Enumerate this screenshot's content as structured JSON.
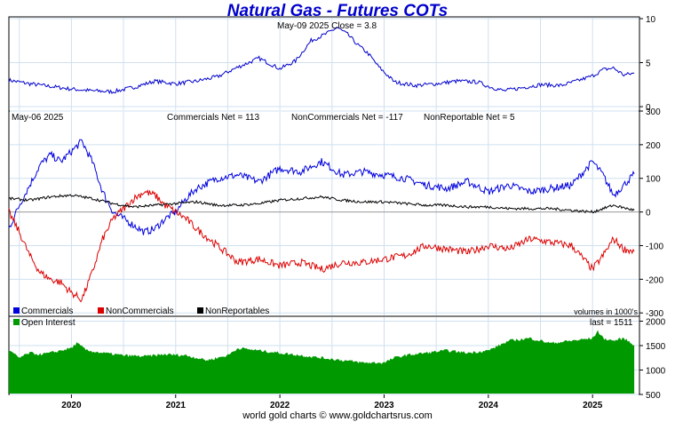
{
  "header": {
    "title": "Natural Gas - Futures COTs",
    "price_info": "May-09  2025    Close = 3.8"
  },
  "cot_info": {
    "date": "May-06  2025",
    "commercials_net": "Commercials Net = 113",
    "noncommercials_net": "NonCommercials Net = -117",
    "nonreportable_net": "NonReportable Net = 5",
    "volumes_note": "volumes in 1000's"
  },
  "oi_info": {
    "legend": "Open Interest",
    "last": "last = 1511"
  },
  "footer": "world gold charts © www.goldchartsrus.com",
  "colors": {
    "price": "#0000cc",
    "commercials": "#0000dd",
    "noncommercials": "#dd0000",
    "nonreportables": "#000000",
    "open_interest": "#009900",
    "grid": "#cfe0f0"
  },
  "chart_data": [
    {
      "type": "line",
      "name": "price",
      "x_ticks": [
        "2020",
        "2021",
        "2022",
        "2023",
        "2024",
        "2025"
      ],
      "yticks": [
        0,
        5,
        10
      ],
      "ylim": [
        -0.5,
        10.2
      ],
      "x_range": [
        2019.4,
        2025.45
      ],
      "x": [
        2019.4,
        2019.6,
        2019.8,
        2020.0,
        2020.2,
        2020.4,
        2020.6,
        2020.8,
        2021.0,
        2021.2,
        2021.4,
        2021.6,
        2021.8,
        2022.0,
        2022.15,
        2022.3,
        2022.45,
        2022.55,
        2022.65,
        2022.75,
        2022.85,
        2022.95,
        2023.1,
        2023.3,
        2023.5,
        2023.7,
        2023.9,
        2024.0,
        2024.15,
        2024.3,
        2024.5,
        2024.7,
        2024.9,
        2025.0,
        2025.1,
        2025.2,
        2025.3,
        2025.4
      ],
      "y": [
        3.0,
        2.6,
        2.3,
        2.0,
        1.8,
        1.7,
        2.2,
        2.9,
        2.6,
        2.9,
        3.4,
        4.5,
        5.5,
        4.3,
        5.2,
        7.5,
        8.3,
        9.0,
        8.2,
        7.0,
        6.0,
        4.5,
        2.8,
        2.4,
        2.6,
        2.9,
        2.8,
        2.3,
        1.8,
        2.1,
        2.5,
        2.4,
        3.1,
        3.5,
        4.2,
        4.4,
        3.6,
        3.8
      ]
    },
    {
      "type": "line",
      "name": "cot",
      "yticks": [
        -300,
        -200,
        -100,
        0,
        100,
        200,
        300
      ],
      "ylim": [
        -310,
        300
      ],
      "x_range": [
        2019.4,
        2025.45
      ],
      "series": [
        {
          "name": "Commercials",
          "x": [
            2019.4,
            2019.5,
            2019.6,
            2019.7,
            2019.8,
            2019.9,
            2020.0,
            2020.1,
            2020.2,
            2020.3,
            2020.4,
            2020.5,
            2020.6,
            2020.7,
            2020.8,
            2020.9,
            2021.0,
            2021.1,
            2021.2,
            2021.4,
            2021.6,
            2021.8,
            2022.0,
            2022.2,
            2022.4,
            2022.6,
            2022.8,
            2023.0,
            2023.2,
            2023.4,
            2023.6,
            2023.8,
            2024.0,
            2024.2,
            2024.4,
            2024.6,
            2024.8,
            2025.0,
            2025.1,
            2025.2,
            2025.3,
            2025.4
          ],
          "y": [
            -50,
            20,
            80,
            140,
            170,
            150,
            180,
            210,
            150,
            60,
            0,
            -20,
            -40,
            -60,
            -50,
            -20,
            0,
            40,
            70,
            100,
            110,
            90,
            130,
            120,
            150,
            110,
            120,
            110,
            100,
            80,
            70,
            90,
            60,
            80,
            60,
            70,
            80,
            150,
            110,
            50,
            80,
            113
          ]
        },
        {
          "name": "NonCommercials",
          "x": [
            2019.4,
            2019.5,
            2019.6,
            2019.7,
            2019.8,
            2019.9,
            2020.0,
            2020.1,
            2020.2,
            2020.3,
            2020.4,
            2020.5,
            2020.6,
            2020.7,
            2020.8,
            2020.9,
            2021.0,
            2021.1,
            2021.2,
            2021.4,
            2021.6,
            2021.8,
            2022.0,
            2022.2,
            2022.4,
            2022.6,
            2022.8,
            2023.0,
            2023.2,
            2023.4,
            2023.6,
            2023.8,
            2024.0,
            2024.2,
            2024.4,
            2024.6,
            2024.8,
            2025.0,
            2025.1,
            2025.2,
            2025.3,
            2025.4
          ],
          "y": [
            0,
            -60,
            -130,
            -180,
            -200,
            -210,
            -240,
            -260,
            -180,
            -80,
            -20,
            10,
            40,
            60,
            50,
            20,
            0,
            -20,
            -50,
            -100,
            -150,
            -140,
            -160,
            -150,
            -170,
            -150,
            -150,
            -140,
            -130,
            -100,
            -110,
            -120,
            -100,
            -110,
            -80,
            -90,
            -100,
            -170,
            -130,
            -80,
            -110,
            -117
          ]
        },
        {
          "name": "NonReportables",
          "x": [
            2019.4,
            2019.6,
            2019.8,
            2020.0,
            2020.2,
            2020.4,
            2020.6,
            2020.8,
            2021.0,
            2021.2,
            2021.4,
            2021.6,
            2021.8,
            2022.0,
            2022.2,
            2022.4,
            2022.6,
            2022.8,
            2023.0,
            2023.2,
            2023.4,
            2023.6,
            2023.8,
            2024.0,
            2024.2,
            2024.4,
            2024.6,
            2024.8,
            2025.0,
            2025.2,
            2025.4
          ],
          "y": [
            40,
            35,
            45,
            50,
            40,
            25,
            15,
            20,
            25,
            30,
            20,
            20,
            25,
            35,
            40,
            45,
            35,
            30,
            30,
            25,
            20,
            20,
            15,
            15,
            10,
            10,
            10,
            5,
            0,
            20,
            5
          ]
        }
      ]
    },
    {
      "type": "area",
      "name": "open_interest",
      "yticks": [
        500,
        1000,
        1500,
        2000
      ],
      "ylim": [
        500,
        2100
      ],
      "x_range": [
        2019.4,
        2025.45
      ],
      "x": [
        2019.4,
        2019.5,
        2019.6,
        2019.7,
        2019.8,
        2019.9,
        2020.0,
        2020.05,
        2020.15,
        2020.3,
        2020.5,
        2020.7,
        2020.9,
        2021.1,
        2021.3,
        2021.5,
        2021.6,
        2021.8,
        2022.0,
        2022.2,
        2022.4,
        2022.6,
        2022.8,
        2023.0,
        2023.1,
        2023.2,
        2023.4,
        2023.6,
        2023.8,
        2024.0,
        2024.1,
        2024.2,
        2024.4,
        2024.6,
        2024.8,
        2025.0,
        2025.05,
        2025.1,
        2025.2,
        2025.3,
        2025.4
      ],
      "y": [
        1400,
        1250,
        1350,
        1320,
        1350,
        1400,
        1450,
        1550,
        1400,
        1350,
        1300,
        1280,
        1320,
        1300,
        1200,
        1300,
        1450,
        1400,
        1350,
        1300,
        1250,
        1200,
        1150,
        1150,
        1250,
        1300,
        1350,
        1400,
        1350,
        1400,
        1500,
        1600,
        1650,
        1550,
        1600,
        1650,
        1800,
        1650,
        1600,
        1650,
        1511
      ]
    }
  ]
}
